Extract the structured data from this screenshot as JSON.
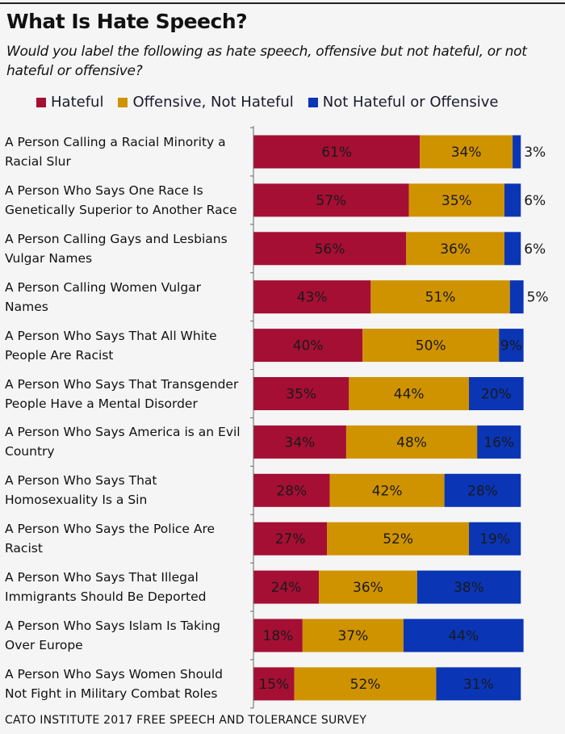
{
  "chart_data": {
    "type": "stacked-bar-horizontal",
    "title": "What Is Hate Speech?",
    "subtitle": "Would you label the following as hate speech, offensive but not hateful, or not hateful or offensive?",
    "unit": "%",
    "legend_position": "top",
    "grid": false,
    "categories": [
      "A Person Calling a Racial Minority a Racial Slur",
      "A Person Who Says One Race Is Genetically Superior to Another Race",
      "A Person Calling Gays and Lesbians Vulgar Names",
      "A Person Calling Women Vulgar Names",
      "A Person Who Says That All White People Are Racist",
      "A Person Who Says That Transgender People Have a Mental Disorder",
      "A Person Who Says America is an Evil Country",
      "A Person Who Says That Homosexuality Is a Sin",
      "A Person Who Says the Police Are Racist",
      "A Person Who Says That Illegal Immigrants Should Be Deported",
      "A Person Who Says Islam Is Taking Over Europe",
      "A Person Who Says Women Should Not Fight in Military Combat Roles"
    ],
    "category_lines": [
      [
        "A Person Calling a Racial Minority a",
        "Racial Slur"
      ],
      [
        "A Person Who Says One Race Is",
        "Genetically Superior to Another Race"
      ],
      [
        "A Person Calling Gays and Lesbians",
        "Vulgar Names"
      ],
      [
        "A Person Calling Women Vulgar",
        "Names"
      ],
      [
        "A Person Who Says That All White",
        "People Are Racist"
      ],
      [
        "A Person Who Says That Transgender",
        "People Have a Mental Disorder"
      ],
      [
        "A Person Who Says America is an Evil",
        "Country"
      ],
      [
        "A Person Who Says That",
        "Homosexuality Is a Sin"
      ],
      [
        "A Person Who Says the Police Are",
        "Racist"
      ],
      [
        "A Person Who Says That Illegal",
        "Immigrants Should Be Deported"
      ],
      [
        "A Person Who Says Islam Is Taking",
        "Over Europe"
      ],
      [
        "A Person Who Says Women Should",
        "Not Fight in Military Combat Roles"
      ]
    ],
    "series": [
      {
        "name": "Hateful",
        "color": "#a50f34",
        "values": [
          61,
          57,
          56,
          43,
          40,
          35,
          34,
          28,
          27,
          24,
          18,
          15
        ]
      },
      {
        "name": "Offensive, Not Hateful",
        "color": "#cf9300",
        "values": [
          34,
          35,
          36,
          51,
          50,
          44,
          48,
          42,
          52,
          36,
          37,
          52
        ]
      },
      {
        "name": "Not Hateful or Offensive",
        "color": "#0a35b5",
        "values": [
          3,
          6,
          6,
          5,
          9,
          20,
          16,
          28,
          19,
          38,
          44,
          31
        ]
      }
    ],
    "xlim": [
      0,
      100
    ]
  },
  "footer": "CATO INSTITUTE 2017 FREE SPEECH AND TOLERANCE SURVEY"
}
